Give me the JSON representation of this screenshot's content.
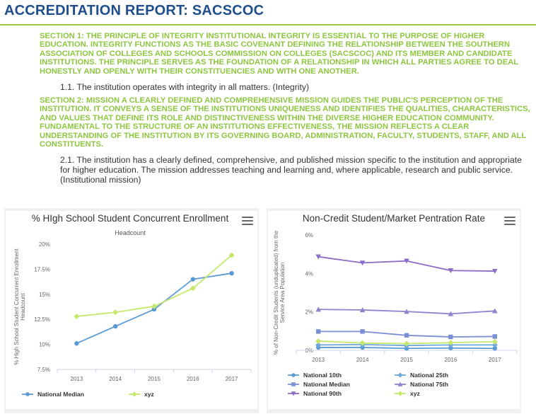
{
  "page": {
    "title": "ACCREDITATION REPORT: SACSCOC"
  },
  "sections": [
    {
      "heading": "SECTION 1: THE PRINCIPLE OF INTEGRITY INSTITUTIONAL INTEGRITY IS ESSENTIAL TO THE PURPOSE OF HIGHER EDUCATION. INTEGRITY FUNCTIONS AS THE BASIC COVENANT DEFINING THE RELATIONSHIP BETWEEN THE SOUTHERN ASSOCIATION OF COLLEGES AND SCHOOLS COMMISSION ON COLLEGES (SACSCOC) AND ITS MEMBER AND CANDIDATE INSTITUTIONS. THE PRINCIPLE SERVES AS THE FOUNDATION OF A RELATIONSHIP IN WHICH ALL PARTIES AGREE TO DEAL HONESTLY AND OPENLY WITH THEIR CONSTITUENCIES AND WITH ONE ANOTHER.",
      "criterion": "1.1. The institution operates with integrity in all matters. (Integrity)"
    },
    {
      "heading": "SECTION 2: MISSION A CLEARLY DEFINED AND COMPREHENSIVE MISSION GUIDES THE PUBLIC'S PERCEPTION OF THE INSTITUTION. IT CONVEYS A SENSE OF THE INSTITUTIONS UNIQUENESS AND IDENTIFIES THE QUALITIES, CHARACTERISTICS, AND VALUES THAT DEFINE ITS ROLE AND DISTINCTIVENESS WITHIN THE DIVERSE HIGHER EDUCATION COMMUNITY. FUNDAMENTAL TO THE STRUCTURE OF AN INSTITUTIONS EFFECTIVENESS, THE MISSION REFLECTS A CLEAR UNDERSTANDING OF THE INSTITUTION BY ITS GOVERNING BOARD, ADMINISTRATION, FACULTY, STUDENTS, STAFF, AND ALL CONSTITUENTS.",
      "criterion": "2.1. The institution has a clearly defined, comprehensive, and published mission specific to the institution and appropriate for higher education. The mission addresses teaching and learning and, where applicable, research and public service. (Institutional mission)"
    }
  ],
  "colors": {
    "title": "#1f4e8c",
    "section": "#8dc63f",
    "rule": "#9cc540",
    "axis_text": "#666666"
  },
  "chart_data": [
    {
      "type": "line",
      "title": "% HIgh School Student Concurrent Enrollment",
      "subtitle": "Headcount",
      "ylabel": "% High School Student Concurrent Enrollment Headcount",
      "xlabel": "",
      "x": [
        "2013",
        "2014",
        "2015",
        "2016",
        "2017"
      ],
      "y_ticks": [
        "7.5%",
        "10%",
        "12.5%",
        "15%",
        "17.5%",
        "20%"
      ],
      "ylim": [
        7.5,
        20
      ],
      "grid": false,
      "legend_position": "bottom",
      "series": [
        {
          "name": "National Median",
          "values": [
            10.1,
            11.8,
            13.5,
            16.5,
            17.1
          ],
          "color": "#5b9bd5",
          "marker": "circle"
        },
        {
          "name": "xyz",
          "values": [
            12.8,
            13.2,
            13.8,
            15.6,
            18.9
          ],
          "color": "#c5e86c",
          "marker": "diamond"
        }
      ]
    },
    {
      "type": "line",
      "title": "Non-Credit Student/Market Pentration Rate",
      "ylabel": "% of Non-Credit Students (unduplicated) from the Service Area Population",
      "xlabel": "",
      "x": [
        "2013",
        "2014",
        "2015",
        "2016",
        "2017"
      ],
      "y_ticks": [
        "0%",
        "2%",
        "4%",
        "6%"
      ],
      "ylim": [
        0,
        6
      ],
      "grid": false,
      "legend_position": "bottom",
      "series": [
        {
          "name": "National 10th",
          "values": [
            0.15,
            0.15,
            0.1,
            0.12,
            0.1
          ],
          "color": "#5b9bd5",
          "marker": "circle"
        },
        {
          "name": "National 25th",
          "values": [
            0.28,
            0.3,
            0.25,
            0.28,
            0.28
          ],
          "color": "#6fa8dc",
          "marker": "diamond"
        },
        {
          "name": "National Median",
          "values": [
            0.98,
            0.98,
            0.78,
            0.7,
            0.72
          ],
          "color": "#7b8fd4",
          "marker": "square"
        },
        {
          "name": "National 75th",
          "values": [
            2.13,
            2.1,
            2.02,
            1.9,
            2.05
          ],
          "color": "#8a83cf",
          "marker": "triangle"
        },
        {
          "name": "National 90th",
          "values": [
            4.87,
            4.55,
            4.65,
            4.15,
            4.12
          ],
          "color": "#8b6cc6",
          "marker": "triangle-down"
        },
        {
          "name": "xyz",
          "values": [
            0.48,
            0.38,
            0.35,
            0.4,
            0.45
          ],
          "color": "#c5e86c",
          "marker": "diamond"
        }
      ]
    }
  ]
}
